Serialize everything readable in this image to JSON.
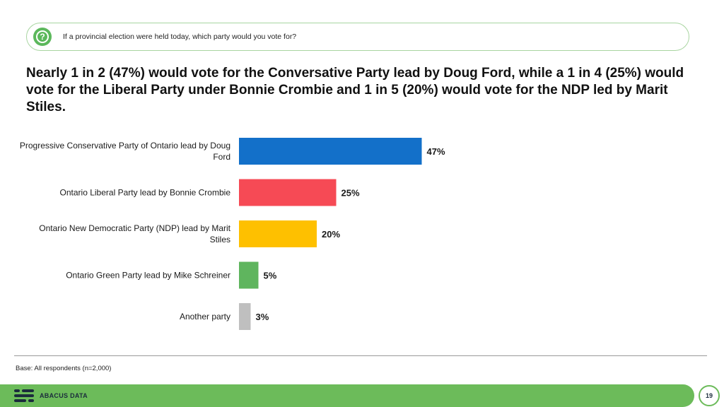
{
  "question": "If a provincial election were held today, which party would you vote for?",
  "headline": "Nearly 1 in 2 (47%) would vote for the Conversative Party lead by Doug Ford, while a 1 in 4 (25%) would vote for the Liberal Party under Bonnie Crombie and 1 in 5 (20%) would vote for the NDP led by Marit Stiles.",
  "chart_data": {
    "type": "bar",
    "orientation": "horizontal",
    "categories": [
      "Progressive Conservative Party of Ontario lead by Doug Ford",
      "Ontario Liberal Party lead by Bonnie Crombie",
      "Ontario New Democratic Party (NDP) lead by Marit Stiles",
      "Ontario Green Party lead by Mike Schreiner",
      "Another party"
    ],
    "values": [
      47,
      25,
      20,
      5,
      3
    ],
    "data_labels": [
      "47%",
      "25%",
      "20%",
      "5%",
      "3%"
    ],
    "colors": [
      "#1370c9",
      "#f64a55",
      "#fec000",
      "#5fb55e",
      "#bfbfbf"
    ],
    "xlim": [
      0,
      100
    ],
    "grid": false,
    "legend": "none"
  },
  "base_note": "Base: All respondents (n=2,000)",
  "footer": {
    "brand": "ABACUS DATA",
    "page_number": "19"
  }
}
